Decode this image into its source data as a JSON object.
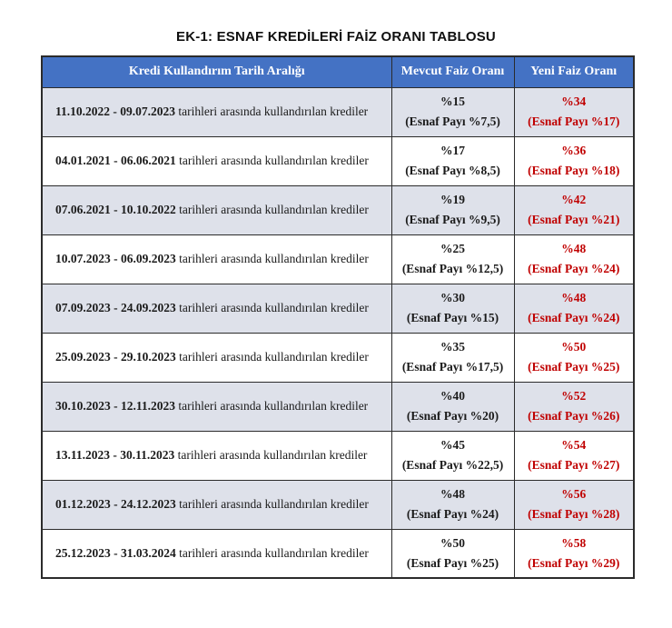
{
  "page": {
    "title": "EK-1: ESNAF KREDİLERİ FAİZ ORANI TABLOSU"
  },
  "colors": {
    "header_bg": "#4472C4",
    "header_text": "#FFFFFF",
    "row_alt_bg": "#DEE1EA",
    "row_bg": "#FFFFFF",
    "new_rate_text": "#C00000",
    "body_text": "#1A1A1A",
    "border": "#2B2B2B"
  },
  "table": {
    "columns": [
      "Kredi Kullandırım Tarih Aralığı",
      "Mevcut Faiz Oranı",
      "Yeni Faiz Oranı"
    ],
    "row_suffix": "tarihleri arasında kullandırılan krediler",
    "rows": [
      {
        "date_range": "11.10.2022 - 09.07.2023",
        "current_rate": "%15",
        "current_share": "(Esnaf Payı %7,5)",
        "new_rate": "%34",
        "new_share": "(Esnaf Payı %17)"
      },
      {
        "date_range": "04.01.2021 - 06.06.2021",
        "current_rate": "%17",
        "current_share": "(Esnaf Payı %8,5)",
        "new_rate": "%36",
        "new_share": "(Esnaf Payı %18)"
      },
      {
        "date_range": "07.06.2021 - 10.10.2022",
        "current_rate": "%19",
        "current_share": "(Esnaf Payı %9,5)",
        "new_rate": "%42",
        "new_share": "(Esnaf Payı %21)"
      },
      {
        "date_range": "10.07.2023 - 06.09.2023",
        "current_rate": "%25",
        "current_share": "(Esnaf Payı %12,5)",
        "new_rate": "%48",
        "new_share": "(Esnaf Payı %24)"
      },
      {
        "date_range": "07.09.2023 - 24.09.2023",
        "current_rate": "%30",
        "current_share": "(Esnaf Payı %15)",
        "new_rate": "%48",
        "new_share": "(Esnaf Payı %24)"
      },
      {
        "date_range": "25.09.2023 - 29.10.2023",
        "current_rate": "%35",
        "current_share": "(Esnaf Payı %17,5)",
        "new_rate": "%50",
        "new_share": "(Esnaf Payı %25)"
      },
      {
        "date_range": "30.10.2023 - 12.11.2023",
        "current_rate": "%40",
        "current_share": "(Esnaf Payı %20)",
        "new_rate": "%52",
        "new_share": "(Esnaf Payı %26)"
      },
      {
        "date_range": "13.11.2023 - 30.11.2023",
        "current_rate": "%45",
        "current_share": "(Esnaf Payı %22,5)",
        "new_rate": "%54",
        "new_share": "(Esnaf Payı %27)"
      },
      {
        "date_range": "01.12.2023 - 24.12.2023",
        "current_rate": "%48",
        "current_share": "(Esnaf Payı %24)",
        "new_rate": "%56",
        "new_share": "(Esnaf Payı %28)"
      },
      {
        "date_range": "25.12.2023 - 31.03.2024",
        "current_rate": "%50",
        "current_share": "(Esnaf Payı %25)",
        "new_rate": "%58",
        "new_share": "(Esnaf Payı %29)"
      }
    ]
  }
}
